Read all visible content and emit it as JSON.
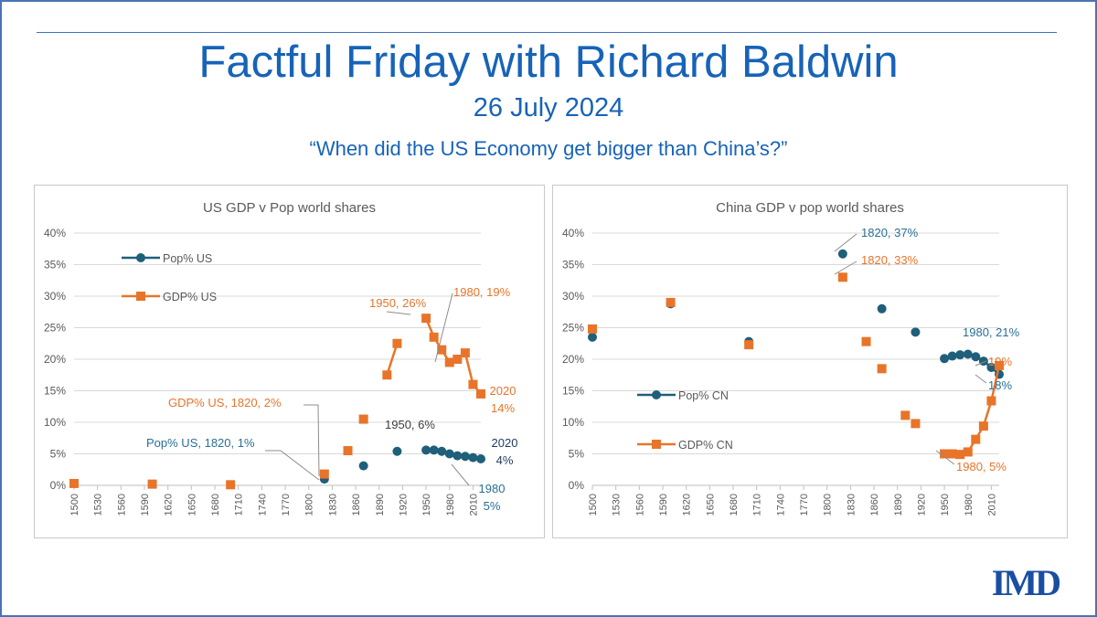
{
  "header": {
    "title": "Factful Friday with Richard Baldwin",
    "date": "26 July 2024",
    "question": "“When did the US Economy get bigger than China’s?”"
  },
  "logo_text": "IMD",
  "colors": {
    "pop": "#1f5f7a",
    "gdp": "#e8742a",
    "grid": "#d9d9d9",
    "axis": "#bfbfbf",
    "tick": "#595959"
  },
  "chart_data": [
    {
      "id": "us",
      "type": "line",
      "title": "US GDP v Pop world shares",
      "ylim": [
        0,
        0.4
      ],
      "yticks": [
        "0%",
        "5%",
        "10%",
        "15%",
        "20%",
        "25%",
        "30%",
        "35%",
        "40%"
      ],
      "xlim": [
        1500,
        2020
      ],
      "xticks": [
        1500,
        1530,
        1560,
        1590,
        1620,
        1650,
        1680,
        1710,
        1740,
        1770,
        1800,
        1830,
        1860,
        1890,
        1920,
        1950,
        1980,
        2010
      ],
      "legend": {
        "position": "top-left"
      },
      "series": [
        {
          "name": "Pop% US",
          "key": "pop",
          "marker": "circle",
          "x": [
            1820,
            1870,
            1913,
            1950,
            1960,
            1970,
            1980,
            1990,
            2000,
            2010,
            2020
          ],
          "y": [
            0.01,
            0.031,
            0.054,
            0.056,
            0.056,
            0.054,
            0.05,
            0.047,
            0.046,
            0.044,
            0.042
          ],
          "line_from": 1950
        },
        {
          "name": "GDP% US",
          "key": "gdp",
          "marker": "square",
          "x": [
            1500,
            1600,
            1700,
            1820,
            1850,
            1870,
            1900,
            1913,
            1950,
            1960,
            1970,
            1980,
            1990,
            2000,
            2010,
            2020
          ],
          "y": [
            0.003,
            0.002,
            0.001,
            0.018,
            0.055,
            0.105,
            0.175,
            0.225,
            0.265,
            0.235,
            0.215,
            0.195,
            0.2,
            0.21,
            0.16,
            0.145
          ],
          "line_segments": [
            [
              1900,
              1913
            ],
            [
              1950,
              2020
            ]
          ]
        }
      ],
      "annotations": [
        {
          "lines": [
            "1950, 26%"
          ],
          "color_key": "gdp"
        },
        {
          "lines": [
            "1980, 19%"
          ],
          "color_key": "gdp"
        },
        {
          "lines": [
            "2020",
            "14%"
          ],
          "color_key": "gdp"
        },
        {
          "lines": [
            "GDP% US, 1820, 2%"
          ],
          "color_key": "gdp"
        },
        {
          "lines": [
            "Pop% US, 1820, 1%"
          ],
          "color_key": "popLabel"
        },
        {
          "lines": [
            "1950, 6%"
          ],
          "color_key": "dark"
        },
        {
          "lines": [
            "2020",
            "4%"
          ],
          "color_key": "navy"
        },
        {
          "lines": [
            "1980",
            "5%"
          ],
          "color_key": "popLabel"
        }
      ]
    },
    {
      "id": "cn",
      "type": "line",
      "title": "China GDP v pop world shares",
      "ylim": [
        0,
        0.4
      ],
      "yticks": [
        "0%",
        "5%",
        "10%",
        "15%",
        "20%",
        "25%",
        "30%",
        "35%",
        "40%"
      ],
      "xlim": [
        1500,
        2020
      ],
      "xticks": [
        1500,
        1530,
        1560,
        1590,
        1620,
        1650,
        1680,
        1710,
        1740,
        1770,
        1800,
        1830,
        1860,
        1890,
        1920,
        1950,
        1980,
        2010
      ],
      "legend": {
        "position": "left"
      },
      "series": [
        {
          "name": "Pop% CN",
          "key": "pop",
          "marker": "circle",
          "x": [
            1500,
            1600,
            1700,
            1820,
            1870,
            1913,
            1950,
            1960,
            1970,
            1980,
            1990,
            2000,
            2010,
            2020
          ],
          "y": [
            0.235,
            0.288,
            0.228,
            0.367,
            0.28,
            0.243,
            0.201,
            0.205,
            0.207,
            0.208,
            0.204,
            0.197,
            0.187,
            0.176
          ],
          "line_from": 1950
        },
        {
          "name": "GDP% CN",
          "key": "gdp",
          "marker": "square",
          "x": [
            1500,
            1600,
            1700,
            1820,
            1850,
            1870,
            1900,
            1913,
            1950,
            1960,
            1970,
            1980,
            1990,
            2000,
            2010,
            2020
          ],
          "y": [
            0.248,
            0.29,
            0.223,
            0.33,
            0.228,
            0.185,
            0.111,
            0.098,
            0.05,
            0.05,
            0.049,
            0.053,
            0.073,
            0.094,
            0.134,
            0.19
          ],
          "line_from": 1950
        }
      ],
      "annotations": [
        {
          "lines": [
            "1820, 37%"
          ],
          "color_key": "popLabel"
        },
        {
          "lines": [
            "1820, 33%"
          ],
          "color_key": "gdp"
        },
        {
          "lines": [
            "1980, 21%"
          ],
          "color_key": "popLabel"
        },
        {
          "lines": [
            "19%"
          ],
          "color_key": "gdp"
        },
        {
          "lines": [
            "18%"
          ],
          "color_key": "popLabel"
        },
        {
          "lines": [
            "1980, 5%"
          ],
          "color_key": "gdp"
        }
      ]
    }
  ]
}
